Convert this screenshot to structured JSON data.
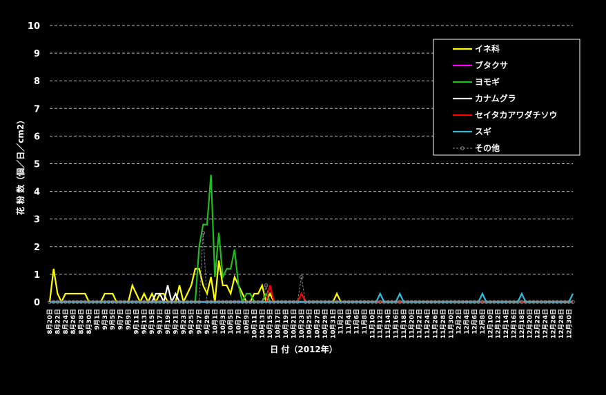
{
  "chart_data": {
    "type": "line",
    "y_label": "花 粉 数（個／日／cm2）",
    "x_label": "日 付（2012年）",
    "categories": [
      "8月20日",
      null,
      "8月22日",
      null,
      "8月24日",
      null,
      "8月26日",
      null,
      "8月28日",
      null,
      "8月30日",
      null,
      "9月1日",
      null,
      "9月3日",
      null,
      "9月5日",
      null,
      "9月7日",
      null,
      "9月9日",
      null,
      "9月11日",
      null,
      "9月13日",
      null,
      "9月15日",
      null,
      "9月17日",
      null,
      "9月19日",
      null,
      "9月21日",
      null,
      "9月23日",
      null,
      "9月25日",
      null,
      "9月27日",
      null,
      "9月29日",
      null,
      "10月1日",
      null,
      "10月3日",
      null,
      "10月5日",
      null,
      "10月7日",
      null,
      "10月9日",
      null,
      "10月11日",
      null,
      "10月13日",
      null,
      "10月15日",
      null,
      "10月17日",
      null,
      "10月19日",
      null,
      "10月21日",
      null,
      "10月23日",
      null,
      "10月25日",
      null,
      "10月27日",
      null,
      "10月29日",
      null,
      "10月31日",
      null,
      "11月2日",
      null,
      "11月4日",
      null,
      "11月6日",
      null,
      "11月8日",
      null,
      "11月10日",
      null,
      "11月12日",
      null,
      "11月14日",
      null,
      "11月16日",
      null,
      "11月18日",
      null,
      "11月20日",
      null,
      "11月22日",
      null,
      "11月24日",
      null,
      "11月26日",
      null,
      "11月28日",
      null,
      "11月30日",
      null,
      "12月2日",
      null,
      "12月4日",
      null,
      "12月6日",
      null,
      "12月8日",
      null,
      "12月10日",
      null,
      "12月12日",
      null,
      "12月14日",
      null,
      "12月16日",
      null,
      "12月18日",
      null,
      "12月20日",
      null,
      "12月22日",
      null,
      "12月24日",
      null,
      "12月26日",
      null,
      "12月28日",
      null,
      "12月30日",
      null
    ],
    "series": [
      {
        "name": "イネ科",
        "color": "#ffff00",
        "values": [
          0,
          1.2,
          0.3,
          0,
          0.3,
          0.3,
          0.3,
          0.3,
          0.3,
          0.3,
          0,
          0,
          0,
          0,
          0.3,
          0.3,
          0.3,
          0,
          0,
          0,
          0,
          0.6,
          0.3,
          0,
          0.3,
          0,
          0.3,
          0,
          0.3,
          0.3,
          0,
          0,
          0,
          0.6,
          0,
          0.3,
          0.6,
          1.2,
          1.2,
          0.6,
          0.3,
          0.9,
          0,
          1.5,
          0.6,
          0.6,
          0.3,
          0.9,
          0.6,
          0.3,
          0,
          0,
          0.3,
          0.3,
          0.6,
          0,
          0.3,
          0,
          0,
          0,
          0,
          0,
          0,
          0,
          0,
          0,
          0,
          0,
          0,
          0,
          0,
          0,
          0,
          0.3,
          0,
          0,
          0,
          0,
          0,
          0,
          0,
          0,
          0,
          0,
          0,
          0,
          0,
          0,
          0,
          0,
          0,
          0,
          0,
          0,
          0,
          0,
          0,
          0,
          0,
          0,
          0,
          0,
          0,
          0,
          0,
          0,
          0,
          0,
          0,
          0,
          0,
          0,
          0,
          0,
          0,
          0,
          0,
          0,
          0,
          0,
          0,
          0,
          0,
          0,
          0,
          0,
          0,
          0,
          0,
          0,
          0,
          0,
          0,
          0
        ]
      },
      {
        "name": "ブタクサ",
        "color": "#ff00ff",
        "values": [
          0,
          0,
          0,
          0,
          0,
          0,
          0,
          0,
          0,
          0,
          0,
          0,
          0,
          0,
          0,
          0,
          0,
          0,
          0,
          0,
          0,
          0,
          0,
          0,
          0,
          0,
          0,
          0,
          0,
          0,
          0,
          0,
          0,
          0,
          0,
          0,
          0,
          0,
          0,
          0,
          0,
          0,
          0,
          0,
          0,
          0,
          0,
          0,
          0,
          0,
          0,
          0,
          0,
          0,
          0,
          0,
          0,
          0,
          0,
          0,
          0,
          0,
          0,
          0,
          0,
          0,
          0,
          0,
          0,
          0,
          0,
          0,
          0,
          0,
          0,
          0,
          0,
          0,
          0,
          0,
          0,
          0,
          0,
          0,
          0,
          0,
          0,
          0,
          0,
          0,
          0,
          0,
          0,
          0,
          0,
          0,
          0,
          0,
          0,
          0,
          0,
          0,
          0,
          0,
          0,
          0,
          0,
          0,
          0,
          0,
          0,
          0,
          0,
          0,
          0,
          0,
          0,
          0,
          0,
          0,
          0,
          0,
          0,
          0,
          0,
          0,
          0,
          0,
          0,
          0,
          0,
          0,
          0,
          0
        ]
      },
      {
        "name": "ヨモギ",
        "color": "#22bb22",
        "values": [
          0,
          0,
          0,
          0,
          0,
          0,
          0,
          0,
          0,
          0,
          0,
          0,
          0,
          0,
          0,
          0,
          0,
          0,
          0,
          0,
          0,
          0,
          0,
          0,
          0,
          0,
          0,
          0,
          0,
          0,
          0,
          0,
          0,
          0,
          0,
          0,
          0,
          0,
          2,
          2.8,
          2.8,
          4.6,
          0.9,
          2.5,
          0.9,
          1.2,
          1.2,
          1.9,
          0.6,
          0,
          0.3,
          0.3,
          0,
          0,
          0,
          0.3,
          0,
          0,
          0,
          0,
          0,
          0,
          0,
          0,
          0,
          0,
          0,
          0,
          0,
          0,
          0,
          0,
          0,
          0,
          0,
          0,
          0,
          0,
          0,
          0,
          0,
          0,
          0,
          0,
          0,
          0,
          0,
          0,
          0,
          0,
          0,
          0,
          0,
          0,
          0,
          0,
          0,
          0,
          0,
          0,
          0,
          0,
          0,
          0,
          0,
          0,
          0,
          0,
          0,
          0,
          0,
          0,
          0,
          0,
          0,
          0,
          0,
          0,
          0,
          0,
          0,
          0,
          0,
          0,
          0,
          0,
          0,
          0,
          0,
          0,
          0,
          0,
          0,
          0
        ]
      },
      {
        "name": "カナムグラ",
        "color": "#ffffff",
        "values": [
          0,
          0,
          0,
          0,
          0,
          0,
          0,
          0,
          0,
          0,
          0,
          0,
          0,
          0,
          0,
          0,
          0,
          0,
          0,
          0,
          0,
          0,
          0,
          0,
          0,
          0,
          0,
          0.3,
          0.3,
          0,
          0.6,
          0,
          0.3,
          0,
          0,
          0,
          0,
          0,
          0,
          0,
          0,
          0,
          0,
          0,
          0,
          0,
          0,
          0,
          0,
          0,
          0,
          0,
          0,
          0,
          0,
          0,
          0,
          0,
          0,
          0,
          0,
          0,
          0,
          0,
          0,
          0,
          0,
          0,
          0,
          0,
          0,
          0,
          0,
          0,
          0,
          0,
          0,
          0,
          0,
          0,
          0,
          0,
          0,
          0,
          0,
          0,
          0,
          0,
          0,
          0,
          0,
          0,
          0,
          0,
          0,
          0,
          0,
          0,
          0,
          0,
          0,
          0,
          0,
          0,
          0,
          0,
          0,
          0,
          0,
          0,
          0,
          0,
          0,
          0,
          0,
          0,
          0,
          0,
          0,
          0,
          0,
          0,
          0,
          0,
          0,
          0,
          0,
          0,
          0,
          0,
          0,
          0,
          0,
          0
        ]
      },
      {
        "name": "セイタカアワダチソウ",
        "color": "#ff0000",
        "values": [
          0,
          0,
          0,
          0,
          0,
          0,
          0,
          0,
          0,
          0,
          0,
          0,
          0,
          0,
          0,
          0,
          0,
          0,
          0,
          0,
          0,
          0,
          0,
          0,
          0,
          0,
          0,
          0,
          0,
          0,
          0,
          0,
          0,
          0,
          0,
          0,
          0,
          0,
          0,
          0,
          0,
          0,
          0,
          0,
          0,
          0,
          0,
          0,
          0,
          0,
          0,
          0,
          0,
          0,
          0,
          0,
          0.6,
          0,
          0,
          0,
          0,
          0,
          0,
          0,
          0.3,
          0,
          0,
          0,
          0,
          0,
          0,
          0,
          0,
          0,
          0,
          0,
          0,
          0,
          0,
          0,
          0,
          0,
          0,
          0,
          0,
          0,
          0,
          0,
          0,
          0,
          0,
          0,
          0,
          0,
          0,
          0,
          0,
          0,
          0,
          0,
          0,
          0,
          0,
          0,
          0,
          0,
          0,
          0,
          0,
          0,
          0,
          0,
          0,
          0,
          0,
          0,
          0,
          0,
          0,
          0,
          0,
          0,
          0,
          0,
          0,
          0,
          0,
          0,
          0,
          0,
          0,
          0,
          0,
          0
        ]
      },
      {
        "name": "スギ",
        "color": "#33bbdd",
        "values": [
          0,
          0,
          0,
          0,
          0,
          0,
          0,
          0,
          0,
          0,
          0,
          0,
          0,
          0,
          0,
          0,
          0,
          0,
          0,
          0,
          0,
          0,
          0,
          0,
          0,
          0,
          0,
          0,
          0,
          0,
          0,
          0,
          0,
          0,
          0,
          0,
          0,
          0,
          0,
          0,
          0,
          0,
          0,
          0,
          0,
          0,
          0,
          0,
          0,
          0,
          0,
          0,
          0,
          0,
          0,
          0,
          0,
          0,
          0,
          0,
          0,
          0,
          0,
          0,
          0,
          0,
          0,
          0,
          0,
          0,
          0,
          0,
          0,
          0,
          0,
          0,
          0,
          0,
          0,
          0,
          0,
          0,
          0,
          0,
          0.3,
          0,
          0,
          0,
          0,
          0.3,
          0,
          0,
          0,
          0,
          0,
          0,
          0,
          0,
          0,
          0,
          0,
          0,
          0,
          0,
          0,
          0,
          0,
          0,
          0,
          0,
          0.3,
          0,
          0,
          0,
          0,
          0,
          0,
          0,
          0,
          0,
          0.3,
          0,
          0,
          0,
          0,
          0,
          0,
          0,
          0,
          0,
          0,
          0,
          0,
          0.3
        ]
      },
      {
        "name": "その他",
        "color": "#888888",
        "dashed": true,
        "markers": true,
        "values": [
          0,
          0,
          0,
          0,
          0,
          0,
          0,
          0,
          0,
          0,
          0,
          0,
          0,
          0,
          0,
          0,
          0,
          0,
          0,
          0,
          0,
          0,
          0,
          0,
          0,
          0,
          0,
          0,
          0,
          0,
          0,
          0,
          0,
          0,
          0,
          0,
          0,
          0,
          0,
          2.5,
          0,
          0,
          0,
          0,
          0,
          0,
          0,
          0,
          0,
          0,
          0,
          0,
          0,
          0,
          0,
          0.6,
          0,
          0,
          0,
          0,
          0,
          0,
          0,
          0,
          0.9,
          0,
          0,
          0,
          0,
          0,
          0,
          0,
          0,
          0,
          0,
          0,
          0,
          0,
          0,
          0,
          0,
          0,
          0,
          0,
          0,
          0,
          0,
          0,
          0,
          0,
          0,
          0,
          0,
          0,
          0,
          0,
          0,
          0,
          0,
          0,
          0,
          0,
          0,
          0,
          0,
          0,
          0,
          0,
          0,
          0,
          0,
          0,
          0,
          0,
          0,
          0,
          0,
          0,
          0,
          0,
          0,
          0,
          0,
          0,
          0,
          0,
          0,
          0,
          0,
          0,
          0,
          0,
          0,
          0
        ]
      }
    ],
    "ylim": [
      0,
      10
    ],
    "yticks": [
      0,
      1,
      2,
      3,
      4,
      5,
      6,
      7,
      8,
      9,
      10
    ],
    "grid": true,
    "legend": "upper right"
  }
}
